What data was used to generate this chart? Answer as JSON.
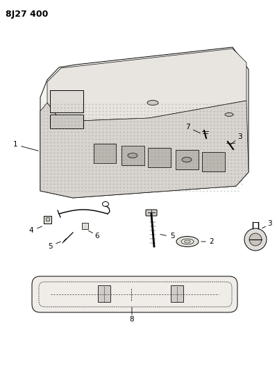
{
  "title": "8J27 400",
  "bg": "#ffffff",
  "lc": "#000000",
  "panel_face": "#f5f3f0",
  "trim_face": "#e8e5e0",
  "hatch_face": "#d8d4cf",
  "rect_face": "#c8c4be",
  "arm_face": "#f0ede8"
}
